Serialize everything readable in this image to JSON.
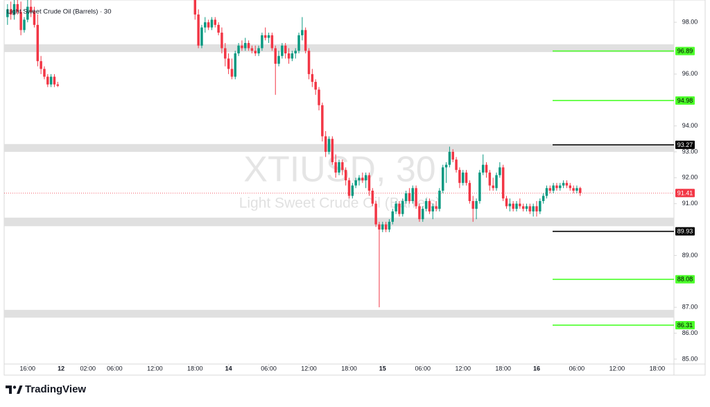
{
  "chart_data": {
    "type": "candlestick",
    "title": "Light Sweet Crude Oil (Barrels) · 30",
    "watermark": "XTIUSD, 30",
    "watermark_subtitle": "Light Sweet Crude Oil (Barrels)",
    "brand": "TradingView",
    "up_color": "#089981",
    "down_color": "#f23645",
    "xlim": [
      0,
      200
    ],
    "ylim": [
      84.81,
      98.86
    ],
    "xticks": [
      {
        "value": 7,
        "label": "16:00"
      },
      {
        "value": 17,
        "label": "12"
      },
      {
        "value": 25,
        "label": "02:00"
      },
      {
        "value": 33,
        "label": "06:00"
      },
      {
        "value": 45,
        "label": "12:00"
      },
      {
        "value": 57,
        "label": "18:00"
      },
      {
        "value": 67,
        "label": "14"
      },
      {
        "value": 79,
        "label": "06:00"
      },
      {
        "value": 91,
        "label": "12:00"
      },
      {
        "value": 103,
        "label": "18:00"
      },
      {
        "value": 113,
        "label": "15"
      },
      {
        "value": 125,
        "label": "06:00"
      },
      {
        "value": 137,
        "label": "12:00"
      },
      {
        "value": 149,
        "label": "18:00"
      },
      {
        "value": 159,
        "label": "16"
      },
      {
        "value": 171,
        "label": "06:00"
      },
      {
        "value": 183,
        "label": "12:00"
      },
      {
        "value": 195,
        "label": "18:00"
      }
    ],
    "yticks": [
      {
        "value": 98,
        "label": "98.00"
      },
      {
        "value": 96,
        "label": "96.00"
      },
      {
        "value": 94,
        "label": "94.00"
      },
      {
        "value": 93,
        "label": "93.00"
      },
      {
        "value": 92,
        "label": "92.00"
      },
      {
        "value": 91,
        "label": "91.00"
      },
      {
        "value": 89,
        "label": "89.00"
      },
      {
        "value": 87,
        "label": "87.00"
      },
      {
        "value": 86,
        "label": "86.00"
      },
      {
        "value": 85,
        "label": "85.00"
      }
    ],
    "zones": [
      [
        96.85,
        97.15
      ],
      [
        93.0,
        93.3
      ],
      [
        90.13,
        90.46
      ],
      [
        86.6,
        86.9
      ]
    ],
    "levels": [
      {
        "value": 96.89,
        "color": "#4cff2a"
      },
      {
        "value": 94.98,
        "color": "#4cff2a"
      },
      {
        "value": 93.27,
        "color": "#000000"
      },
      {
        "value": 89.93,
        "color": "#000000"
      },
      {
        "value": 88.08,
        "color": "#4cff2a"
      },
      {
        "value": 86.31,
        "color": "#4cff2a"
      }
    ],
    "last_price": 91.41,
    "x": [
      1,
      2,
      3,
      4,
      5,
      6,
      7,
      8,
      9,
      10,
      11,
      12,
      13,
      14,
      15,
      16,
      57,
      58,
      59,
      60,
      61,
      62,
      63,
      64,
      65,
      66,
      67,
      68,
      69,
      70,
      71,
      72,
      73,
      74,
      75,
      76,
      77,
      78,
      79,
      80,
      81,
      82,
      83,
      84,
      85,
      86,
      87,
      88,
      89,
      90,
      91,
      92,
      93,
      94,
      95,
      96,
      97,
      98,
      99,
      100,
      101,
      102,
      103,
      104,
      105,
      106,
      107,
      108,
      109,
      110,
      111,
      112,
      113,
      114,
      115,
      116,
      117,
      118,
      119,
      120,
      121,
      122,
      123,
      124,
      125,
      126,
      127,
      128,
      129,
      130,
      131,
      132,
      133,
      134,
      135,
      136,
      137,
      138,
      139,
      140,
      141,
      142,
      143,
      144,
      145,
      146,
      147,
      148,
      149,
      150,
      151,
      152,
      153,
      154,
      155,
      156,
      157,
      158,
      159,
      160,
      161,
      162,
      163,
      164,
      165,
      166,
      167,
      168,
      169,
      170,
      171,
      172
    ],
    "ohlc": [
      [
        98.2,
        98.7,
        97.9,
        98.5
      ],
      [
        98.5,
        98.8,
        98.1,
        98.3
      ],
      [
        98.3,
        98.9,
        98.1,
        98.7
      ],
      [
        98.7,
        98.9,
        98.3,
        98.4
      ],
      [
        98.4,
        98.8,
        97.5,
        97.7
      ],
      [
        97.7,
        98.2,
        97.6,
        98.1
      ],
      [
        98.1,
        98.9,
        98.0,
        98.6
      ],
      [
        98.6,
        98.9,
        98.2,
        98.4
      ],
      [
        98.4,
        98.6,
        97.8,
        97.9
      ],
      [
        97.9,
        98.3,
        96.3,
        96.5
      ],
      [
        96.5,
        96.7,
        96.0,
        96.2
      ],
      [
        96.2,
        96.3,
        95.8,
        95.9
      ],
      [
        95.9,
        96.0,
        95.5,
        95.6
      ],
      [
        95.6,
        96.0,
        95.5,
        95.9
      ],
      [
        95.9,
        96.0,
        95.5,
        95.6
      ],
      [
        95.6,
        95.7,
        95.5,
        95.55
      ],
      [
        98.9,
        99.0,
        98.1,
        98.3
      ],
      [
        98.3,
        98.5,
        97.0,
        97.1
      ],
      [
        97.1,
        97.9,
        97.0,
        97.8
      ],
      [
        97.8,
        98.2,
        97.6,
        98.0
      ],
      [
        98.0,
        98.1,
        97.7,
        97.8
      ],
      [
        97.8,
        98.2,
        97.7,
        98.1
      ],
      [
        98.1,
        98.2,
        97.8,
        97.9
      ],
      [
        97.9,
        98.0,
        97.5,
        97.6
      ],
      [
        97.6,
        97.8,
        96.8,
        97.0
      ],
      [
        97.0,
        97.2,
        96.3,
        96.6
      ],
      [
        96.6,
        96.8,
        96.0,
        96.2
      ],
      [
        96.2,
        96.6,
        95.8,
        95.9
      ],
      [
        95.9,
        96.9,
        95.8,
        96.8
      ],
      [
        96.8,
        97.2,
        96.7,
        97.1
      ],
      [
        97.1,
        97.3,
        96.9,
        97.0
      ],
      [
        97.0,
        97.4,
        96.9,
        97.2
      ],
      [
        97.2,
        97.3,
        96.9,
        97.0
      ],
      [
        97.0,
        97.1,
        96.8,
        96.9
      ],
      [
        96.9,
        97.1,
        96.7,
        96.8
      ],
      [
        96.8,
        97.1,
        96.7,
        97.0
      ],
      [
        97.0,
        97.6,
        96.9,
        97.5
      ],
      [
        97.5,
        97.8,
        97.3,
        97.4
      ],
      [
        97.4,
        97.6,
        97.2,
        97.5
      ],
      [
        97.5,
        97.6,
        96.9,
        97.0
      ],
      [
        97.0,
        97.1,
        95.2,
        96.4
      ],
      [
        96.4,
        96.9,
        96.3,
        96.7
      ],
      [
        96.7,
        97.2,
        96.6,
        97.1
      ],
      [
        97.1,
        97.2,
        96.6,
        96.8
      ],
      [
        96.8,
        97.0,
        96.4,
        96.6
      ],
      [
        96.6,
        96.9,
        96.5,
        96.8
      ],
      [
        96.8,
        97.0,
        96.6,
        96.9
      ],
      [
        96.9,
        97.6,
        96.8,
        97.5
      ],
      [
        97.5,
        98.2,
        97.3,
        97.7
      ],
      [
        97.7,
        97.8,
        96.8,
        96.9
      ],
      [
        96.9,
        97.0,
        95.8,
        96.0
      ],
      [
        96.0,
        96.2,
        95.5,
        95.7
      ],
      [
        95.7,
        95.8,
        95.2,
        95.4
      ],
      [
        95.4,
        95.5,
        94.6,
        94.8
      ],
      [
        94.8,
        94.9,
        93.4,
        93.6
      ],
      [
        93.6,
        93.8,
        92.8,
        93.0
      ],
      [
        93.0,
        93.6,
        92.9,
        93.5
      ],
      [
        93.5,
        93.6,
        92.5,
        92.6
      ],
      [
        92.6,
        92.9,
        92.0,
        92.2
      ],
      [
        92.2,
        92.7,
        92.1,
        92.6
      ],
      [
        92.6,
        92.7,
        92.1,
        92.3
      ],
      [
        92.3,
        92.4,
        91.7,
        91.9
      ],
      [
        91.9,
        92.0,
        91.2,
        91.3
      ],
      [
        91.3,
        91.8,
        91.2,
        91.7
      ],
      [
        91.7,
        92.0,
        91.6,
        91.9
      ],
      [
        91.9,
        92.1,
        91.7,
        92.0
      ],
      [
        92.0,
        92.2,
        91.8,
        91.9
      ],
      [
        91.9,
        92.2,
        91.6,
        92.1
      ],
      [
        92.1,
        92.2,
        91.3,
        91.5
      ],
      [
        91.5,
        91.6,
        90.9,
        91.0
      ],
      [
        91.0,
        91.1,
        90.1,
        90.2
      ],
      [
        90.2,
        90.3,
        87.0,
        90.0
      ],
      [
        90.0,
        90.3,
        89.9,
        90.2
      ],
      [
        90.2,
        90.3,
        89.9,
        90.0
      ],
      [
        90.0,
        90.4,
        89.9,
        90.3
      ],
      [
        90.3,
        90.8,
        90.2,
        90.7
      ],
      [
        90.7,
        91.1,
        90.6,
        91.0
      ],
      [
        91.0,
        91.1,
        90.5,
        90.6
      ],
      [
        90.6,
        91.2,
        90.5,
        91.1
      ],
      [
        91.1,
        91.5,
        91.0,
        91.4
      ],
      [
        91.4,
        91.6,
        91.0,
        91.1
      ],
      [
        91.1,
        91.7,
        91.0,
        91.6
      ],
      [
        91.6,
        91.7,
        90.8,
        90.9
      ],
      [
        90.9,
        91.0,
        90.3,
        90.4
      ],
      [
        90.4,
        90.9,
        90.3,
        90.8
      ],
      [
        90.8,
        91.2,
        90.7,
        91.1
      ],
      [
        91.1,
        91.2,
        90.6,
        90.7
      ],
      [
        90.7,
        91.0,
        90.4,
        90.9
      ],
      [
        90.9,
        91.1,
        90.7,
        90.8
      ],
      [
        90.8,
        91.6,
        90.7,
        91.5
      ],
      [
        91.5,
        92.5,
        91.4,
        92.4
      ],
      [
        92.4,
        92.6,
        91.8,
        92.5
      ],
      [
        92.5,
        93.2,
        92.4,
        93.0
      ],
      [
        93.0,
        93.1,
        92.6,
        92.7
      ],
      [
        92.7,
        92.8,
        92.2,
        92.3
      ],
      [
        92.3,
        92.4,
        91.6,
        91.8
      ],
      [
        91.8,
        92.3,
        91.7,
        92.2
      ],
      [
        92.2,
        92.3,
        91.7,
        91.8
      ],
      [
        91.8,
        91.9,
        91.0,
        91.1
      ],
      [
        91.1,
        91.3,
        90.3,
        90.8
      ],
      [
        90.8,
        91.2,
        90.4,
        91.1
      ],
      [
        91.1,
        92.3,
        91.0,
        92.2
      ],
      [
        92.2,
        92.9,
        92.1,
        92.5
      ],
      [
        92.5,
        92.6,
        92.0,
        92.2
      ],
      [
        92.2,
        92.3,
        91.5,
        91.7
      ],
      [
        91.7,
        92.0,
        91.5,
        91.6
      ],
      [
        91.6,
        92.2,
        91.5,
        92.1
      ],
      [
        92.1,
        92.6,
        92.0,
        92.4
      ],
      [
        92.4,
        92.5,
        91.1,
        91.2
      ],
      [
        91.2,
        91.3,
        90.8,
        90.9
      ],
      [
        90.9,
        91.2,
        90.7,
        91.0
      ],
      [
        91.0,
        91.1,
        90.7,
        90.8
      ],
      [
        90.8,
        91.1,
        90.7,
        91.0
      ],
      [
        91.0,
        91.2,
        90.8,
        90.9
      ],
      [
        90.9,
        91.0,
        90.7,
        90.8
      ],
      [
        90.8,
        91.0,
        90.7,
        90.9
      ],
      [
        90.9,
        91.0,
        90.6,
        90.7
      ],
      [
        90.7,
        91.0,
        90.5,
        90.9
      ],
      [
        90.9,
        91.1,
        90.5,
        90.7
      ],
      [
        90.7,
        91.2,
        90.6,
        91.1
      ],
      [
        91.1,
        91.4,
        91.0,
        91.3
      ],
      [
        91.3,
        91.7,
        91.2,
        91.6
      ],
      [
        91.6,
        91.7,
        91.4,
        91.5
      ],
      [
        91.5,
        91.8,
        91.4,
        91.7
      ],
      [
        91.7,
        91.8,
        91.5,
        91.6
      ],
      [
        91.6,
        91.8,
        91.5,
        91.7
      ],
      [
        91.7,
        91.9,
        91.6,
        91.8
      ],
      [
        91.8,
        91.9,
        91.6,
        91.7
      ],
      [
        91.7,
        91.8,
        91.5,
        91.6
      ],
      [
        91.6,
        91.7,
        91.4,
        91.5
      ],
      [
        91.5,
        91.7,
        91.4,
        91.6
      ],
      [
        91.6,
        91.65,
        91.3,
        91.41
      ]
    ]
  }
}
